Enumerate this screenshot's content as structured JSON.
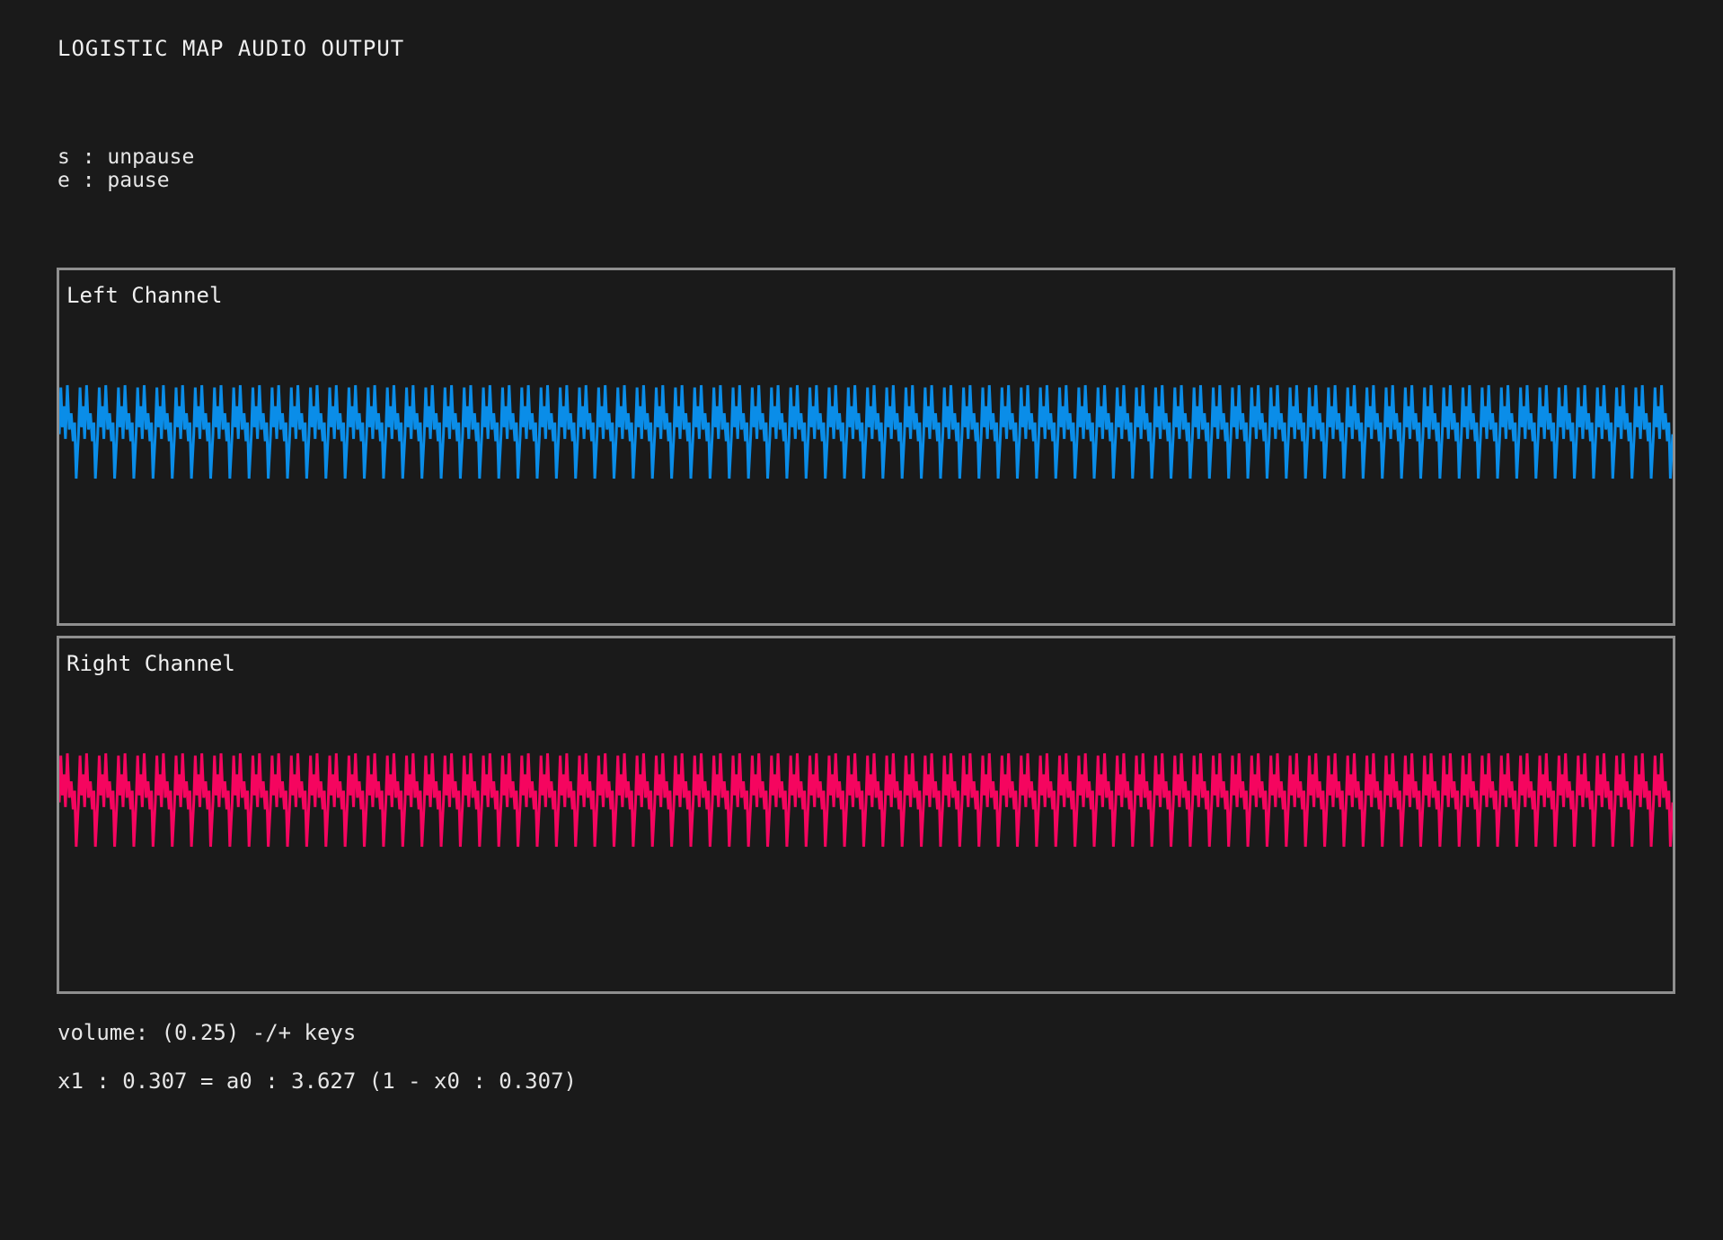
{
  "app": {
    "title": "LOGISTIC MAP AUDIO OUTPUT"
  },
  "controls": {
    "unpause": "s : unpause",
    "pause": "e : pause"
  },
  "channels": {
    "left": {
      "label": "Left Channel",
      "color": "#0a8de8"
    },
    "right": {
      "label": "Right Channel",
      "color": "#f5055f"
    }
  },
  "status": {
    "volume": "volume: (0.25) -/+ keys",
    "equation": "x1 : 0.307 = a0 : 3.627 (1 - x0 : 0.307)"
  },
  "waveform": {
    "a": 3.627,
    "x0": 0.307,
    "volume": 0.25
  }
}
